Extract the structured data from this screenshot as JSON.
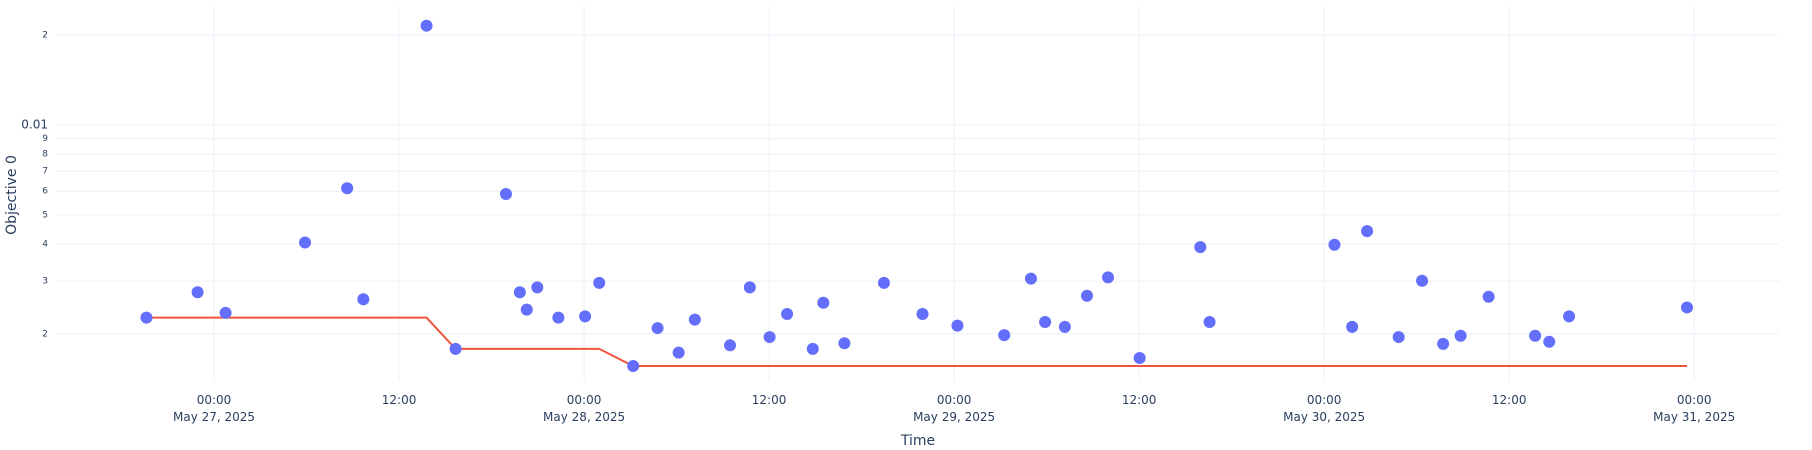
{
  "chart_data": {
    "type": "scatter",
    "x_label": "Time",
    "y_label": "Objective 0",
    "x": [
      "2025-05-26T19:37",
      "2025-05-26T22:56",
      "2025-05-27T00:45",
      "2025-05-27T05:54",
      "2025-05-27T08:38",
      "2025-05-27T09:41",
      "2025-05-27T13:47",
      "2025-05-27T15:40",
      "2025-05-27T18:56",
      "2025-05-27T19:50",
      "2025-05-27T20:17",
      "2025-05-27T20:58",
      "2025-05-27T22:20",
      "2025-05-28T00:04",
      "2025-05-28T00:59",
      "2025-05-28T03:11",
      "2025-05-28T04:46",
      "2025-05-28T06:08",
      "2025-05-28T07:11",
      "2025-05-28T09:28",
      "2025-05-28T10:45",
      "2025-05-28T12:02",
      "2025-05-28T13:10",
      "2025-05-28T14:50",
      "2025-05-28T15:31",
      "2025-05-28T16:53",
      "2025-05-28T19:27",
      "2025-05-28T21:57",
      "2025-05-29T00:13",
      "2025-05-29T03:15",
      "2025-05-29T04:59",
      "2025-05-29T05:54",
      "2025-05-29T07:11",
      "2025-05-29T08:37",
      "2025-05-29T09:59",
      "2025-05-29T12:02",
      "2025-05-29T15:58",
      "2025-05-29T16:34",
      "2025-05-30T00:40",
      "2025-05-30T01:49",
      "2025-05-30T02:47",
      "2025-05-30T04:50",
      "2025-05-30T06:21",
      "2025-05-30T07:43",
      "2025-05-30T08:51",
      "2025-05-30T10:40",
      "2025-05-30T13:41",
      "2025-05-30T14:36",
      "2025-05-30T15:53",
      "2025-05-30T23:32"
    ],
    "series": [
      {
        "type": "scatter",
        "color": "#636efa",
        "values": [
          0.002265,
          0.002754,
          0.00235,
          0.00404,
          0.00614,
          0.00261,
          0.02148,
          0.00178,
          0.00587,
          0.002754,
          0.00241,
          0.00286,
          0.002265,
          0.002287,
          0.00296,
          0.00156,
          0.00209,
          0.00173,
          0.00223,
          0.00183,
          0.00286,
          0.00195,
          0.00233,
          0.00178,
          0.00254,
          0.00186,
          0.00296,
          0.00233,
          0.00213,
          0.00198,
          0.00306,
          0.00219,
          0.00211,
          0.00268,
          0.00309,
          0.00166,
          0.0039,
          0.00219,
          0.00397,
          0.00211,
          0.00441,
          0.00195,
          0.00301,
          0.00185,
          0.00197,
          0.00266,
          0.00197,
          0.00188,
          0.002287,
          0.00245
        ]
      },
      {
        "type": "line",
        "color": "#ef553b",
        "values": [
          0.002265,
          0.002265,
          0.002265,
          0.002265,
          0.002265,
          0.002265,
          0.002265,
          0.00178,
          0.00178,
          0.00178,
          0.00178,
          0.00178,
          0.00178,
          0.00178,
          0.00178,
          0.00156,
          0.00156,
          0.00156,
          0.00156,
          0.00156,
          0.00156,
          0.00156,
          0.00156,
          0.00156,
          0.00156,
          0.00156,
          0.00156,
          0.00156,
          0.00156,
          0.00156,
          0.00156,
          0.00156,
          0.00156,
          0.00156,
          0.00156,
          0.00156,
          0.00156,
          0.00156,
          0.00156,
          0.00156,
          0.00156,
          0.00156,
          0.00156,
          0.00156,
          0.00156,
          0.00156,
          0.00156,
          0.00156,
          0.00156,
          0.00156
        ]
      }
    ],
    "xlim": [
      "2025-05-26T13:45",
      "2025-05-31T05:30"
    ],
    "xticks": [
      {
        "value": "2025-05-27T00:00",
        "label": "00:00\nMay 27, 2025"
      },
      {
        "value": "2025-05-27T12:00",
        "label": "12:00"
      },
      {
        "value": "2025-05-28T00:00",
        "label": "00:00\nMay 28, 2025"
      },
      {
        "value": "2025-05-28T12:00",
        "label": "12:00"
      },
      {
        "value": "2025-05-29T00:00",
        "label": "00:00\nMay 29, 2025"
      },
      {
        "value": "2025-05-29T12:00",
        "label": "12:00"
      },
      {
        "value": "2025-05-30T00:00",
        "label": "00:00\nMay 30, 2025"
      },
      {
        "value": "2025-05-30T12:00",
        "label": "12:00"
      },
      {
        "value": "2025-05-31T00:00",
        "label": "00:00\nMay 31, 2025"
      }
    ],
    "ylim": [
      0.00139,
      0.025
    ],
    "log_y": true,
    "grid": true,
    "yticks": [
      {
        "value": 0.002,
        "label": "2"
      },
      {
        "value": 0.003,
        "label": "3"
      },
      {
        "value": 0.004,
        "label": "4"
      },
      {
        "value": 0.005,
        "label": "5"
      },
      {
        "value": 0.006,
        "label": "6"
      },
      {
        "value": 0.007,
        "label": "7"
      },
      {
        "value": 0.008,
        "label": "8"
      },
      {
        "value": 0.009,
        "label": "9"
      },
      0.01,
      {
        "value": 0.02,
        "label": "2"
      }
    ]
  }
}
